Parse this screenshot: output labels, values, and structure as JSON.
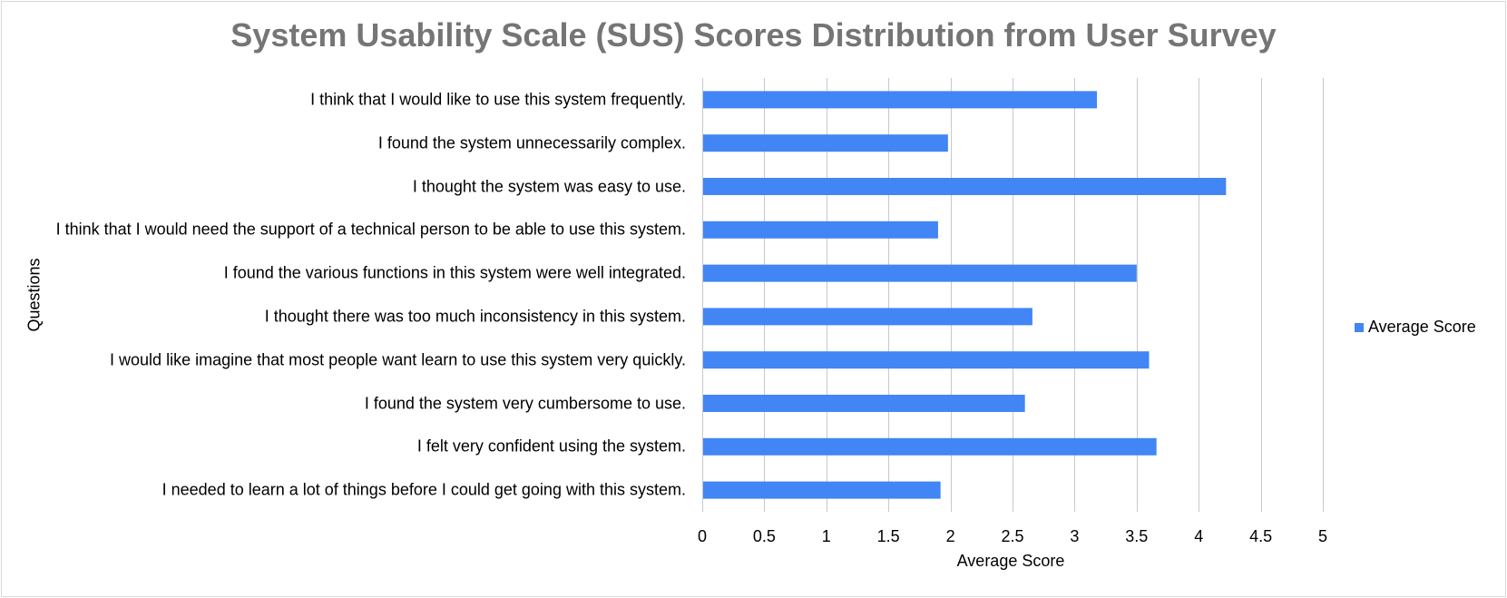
{
  "chart_data": {
    "type": "bar",
    "orientation": "horizontal",
    "title": "System Usability Scale (SUS) Scores Distribution from User Survey",
    "xlabel": "Average Score",
    "ylabel": "Questions",
    "xlim": [
      0,
      5
    ],
    "x_ticks": [
      "0",
      "0.5",
      "1",
      "1.5",
      "2",
      "2.5",
      "3",
      "3.5",
      "4",
      "4.5",
      "5"
    ],
    "grid": "vertical",
    "legend_position": "right",
    "categories": [
      "I think that I would like to use this system frequently.",
      "I found the system unnecessarily complex.",
      "I thought the system was easy to use.",
      "I think that I would need the support of a technical person to be able to use this system.",
      "I found the various functions in this system were well integrated.",
      "I thought there was too much inconsistency in this system.",
      "I would like imagine that most people want learn to use this system very quickly.",
      "I found the system very cumbersome to use.",
      "I felt very confident using the system.",
      "I needed to learn a lot of things before I could get going with this system."
    ],
    "series": [
      {
        "name": "Average Score",
        "color": "#4285f4",
        "values": [
          3.18,
          1.98,
          4.22,
          1.9,
          3.5,
          2.66,
          3.6,
          2.6,
          3.66,
          1.92
        ]
      }
    ]
  }
}
